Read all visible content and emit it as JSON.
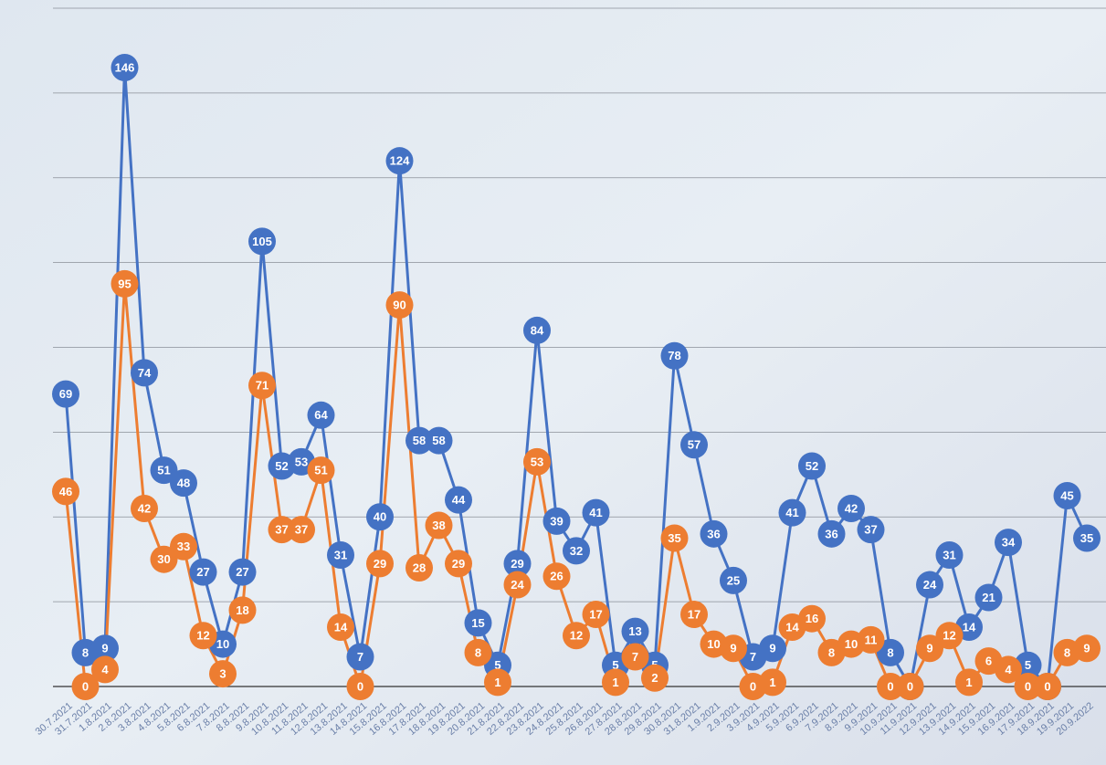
{
  "chart_data": {
    "type": "line",
    "categories": [
      "30.7.2021",
      "31.7.2021",
      "1.8.2021",
      "2.8.2021",
      "3.8.2021",
      "4.8.2021",
      "5.8.2021",
      "6.8.2021",
      "7.8.2021",
      "8.8.2021",
      "9.8.2021",
      "10.8.2021",
      "11.8.2021",
      "12.8.2021",
      "13.8.2021",
      "14.8.2021",
      "15.8.2021",
      "16.8.2021",
      "17.8.2021",
      "18.8.2021",
      "19.8.2021",
      "20.8.2021",
      "21.8.2021",
      "22.8.2021",
      "23.8.2021",
      "24.8.2021",
      "25.8.2021",
      "26.8.2021",
      "27.8.2021",
      "28.8.2021",
      "29.8.2021",
      "30.8.2021",
      "31.8.2021",
      "1.9.2021",
      "2.9.2021",
      "3.9.2021",
      "4.9.2021",
      "5.9.2021",
      "6.9.2021",
      "7.9.2021",
      "8.9.2021",
      "9.9.2021",
      "10.9.2021",
      "11.9.2021",
      "12.9.2021",
      "13.9.2021",
      "14.9.2021",
      "15.9.2021",
      "16.9.2021",
      "17.9.2021",
      "18.9.2021",
      "19.9.2021",
      "20.9.2022"
    ],
    "series": [
      {
        "color": "#4472c4",
        "values": [
          69,
          8,
          9,
          146,
          74,
          51,
          48,
          27,
          10,
          27,
          105,
          52,
          53,
          64,
          31,
          7,
          40,
          124,
          58,
          58,
          44,
          15,
          5,
          29,
          84,
          39,
          32,
          41,
          5,
          13,
          5,
          78,
          57,
          36,
          25,
          7,
          9,
          41,
          52,
          36,
          42,
          37,
          8,
          0,
          24,
          31,
          14,
          21,
          34,
          5,
          0,
          45,
          35
        ]
      },
      {
        "color": "#ed7d31",
        "values": [
          46,
          0,
          4,
          95,
          42,
          30,
          33,
          12,
          3,
          18,
          71,
          37,
          37,
          51,
          14,
          0,
          29,
          90,
          28,
          38,
          29,
          8,
          1,
          24,
          53,
          26,
          12,
          17,
          1,
          7,
          2,
          35,
          17,
          10,
          9,
          0,
          1,
          14,
          16,
          8,
          10,
          11,
          0,
          0,
          9,
          12,
          1,
          6,
          4,
          0,
          0,
          8,
          9
        ]
      }
    ],
    "ylim": [
      0,
      160
    ],
    "yticks": [
      0,
      20,
      40,
      60,
      80,
      100,
      120,
      140,
      160
    ],
    "grid": true
  }
}
